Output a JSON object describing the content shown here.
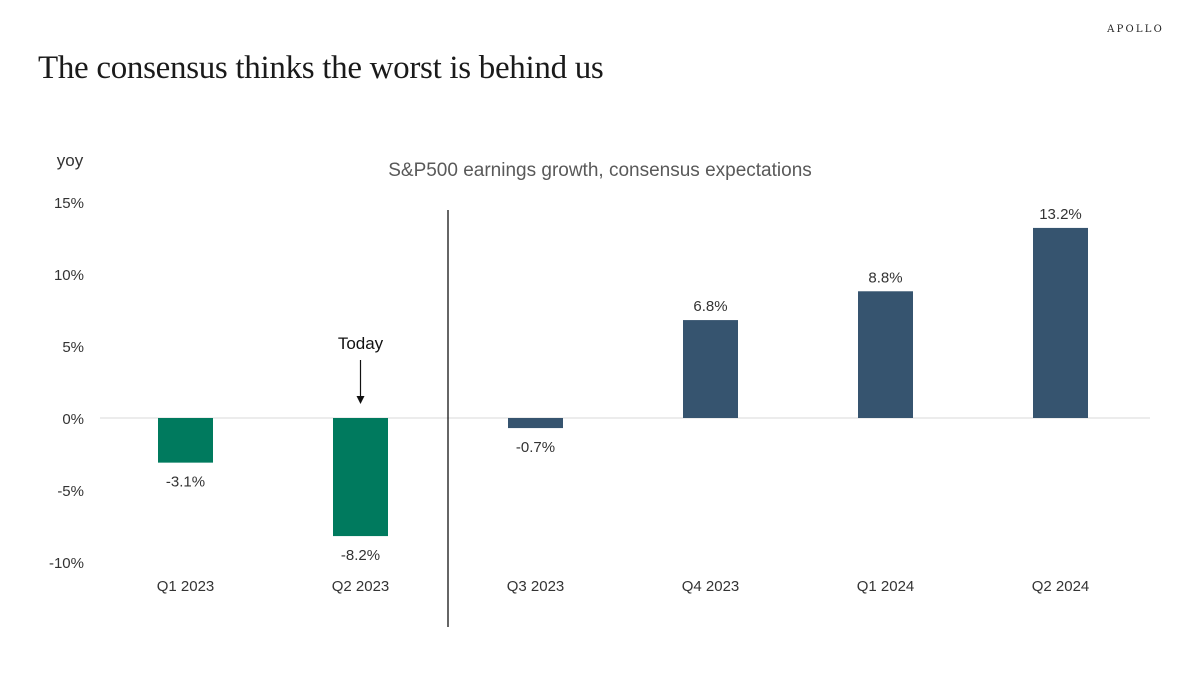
{
  "brand": "APOLLO",
  "page_title": "The consensus thinks the worst is behind us",
  "colors": {
    "actual": "#007a5e",
    "expected": "#36546f",
    "text": "#333333",
    "axis": "#d9d9d9"
  },
  "chart_data": {
    "type": "bar",
    "title": "S&P500 earnings growth, consensus expectations",
    "ylabel": "yoy",
    "xlabel": "",
    "ylim": [
      -10,
      15
    ],
    "yticks": [
      15,
      10,
      5,
      0,
      -5,
      -10
    ],
    "ytick_labels": [
      "15%",
      "10%",
      "5%",
      "0%",
      "-5%",
      "-10%"
    ],
    "categories": [
      "Q1 2023",
      "Q2 2023",
      "Q3 2023",
      "Q4 2023",
      "Q1 2024",
      "Q2 2024"
    ],
    "values": [
      -3.1,
      -8.2,
      -0.7,
      6.8,
      8.8,
      13.2
    ],
    "value_labels": [
      "-3.1%",
      "-8.2%",
      "-0.7%",
      "6.8%",
      "8.8%",
      "13.2%"
    ],
    "bar_groups": [
      "actual",
      "actual",
      "expected",
      "expected",
      "expected",
      "expected"
    ],
    "annotation": {
      "text": "Today",
      "category_index": 1
    },
    "divider_after_index": 1,
    "grid": false
  }
}
